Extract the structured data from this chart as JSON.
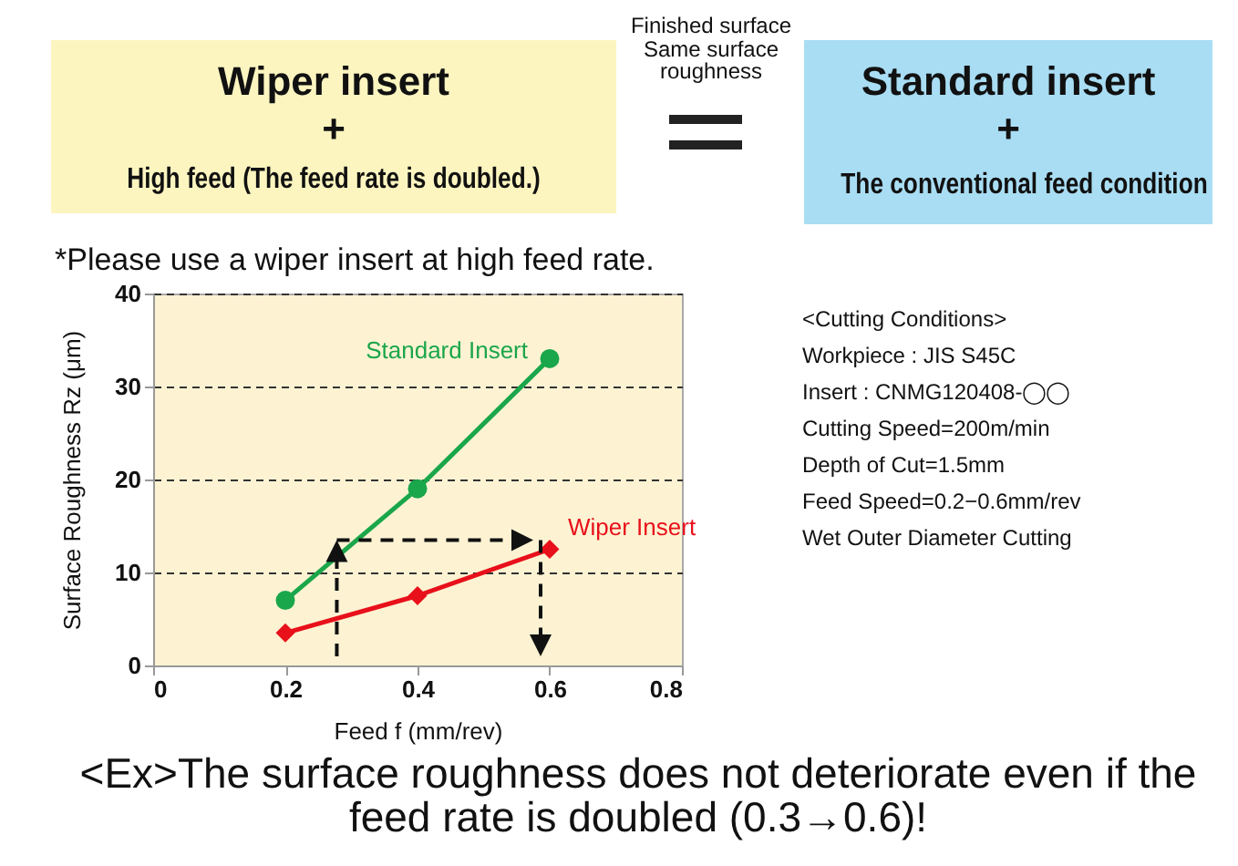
{
  "chart_data": {
    "type": "line",
    "xlabel": "Feed  f (mm/rev)",
    "ylabel": "Surface Roughness Rz (μm)",
    "x": [
      0.2,
      0.4,
      0.6
    ],
    "series": [
      {
        "name": "Standard Insert",
        "color": "#1aa64a",
        "marker": "circle",
        "values": [
          7,
          19,
          33
        ]
      },
      {
        "name": "Wiper Insert",
        "color": "#e8101a",
        "marker": "diamond",
        "values": [
          3.5,
          7.5,
          12.5
        ]
      }
    ],
    "xlim": [
      0,
      0.8
    ],
    "xticks": [
      {
        "value": 0,
        "label": "0"
      },
      0.2,
      0.4,
      0.6,
      0.8
    ],
    "ylim": [
      0,
      40
    ],
    "yticks": [
      0,
      10,
      20,
      30,
      40
    ],
    "grid": "y",
    "line_style": "solid",
    "annotations": [
      "Wiper insert",
      "+",
      "High feed (The feed rate is doubled.)",
      "Finished surface Same surface roughness",
      "Standard insert",
      "+",
      "The conventional feed condition",
      "*Please use a wiper insert at high feed rate.",
      "<Cutting Conditions>",
      "Workpiece : JIS S45C",
      "Insert : CNMG120408-◯◯",
      "Cutting Speed=200m/min",
      "Depth of Cut=1.5mm",
      "Feed Speed=0.2−0.6mm/rev",
      "Wet Outer Diameter Cutting",
      "<Ex>The surface roughness does not deteriorate even if the feed rate is doubled (0.3→0.6)!"
    ]
  }
}
